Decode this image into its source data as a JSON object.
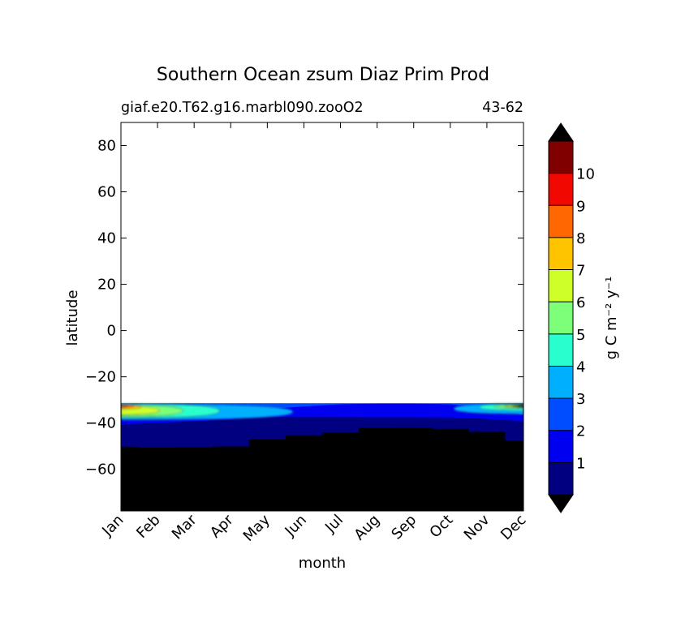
{
  "chart_data": {
    "type": "contour",
    "title": "Southern Ocean zsum Diaz Prim Prod",
    "subtitle_left": "giaf.e20.T62.g16.marbl090.zooO2",
    "subtitle_right": "43-62",
    "xlabel": "month",
    "ylabel": "latitude",
    "x_categories": [
      "Jan",
      "Feb",
      "Mar",
      "Apr",
      "May",
      "Jun",
      "Jul",
      "Aug",
      "Sep",
      "Oct",
      "Nov",
      "Dec"
    ],
    "xlim": [
      0,
      11
    ],
    "ylim": [
      -78,
      90
    ],
    "y_ticks": [
      80,
      60,
      40,
      20,
      0,
      -20,
      -40,
      -60
    ],
    "y_tick_labels": [
      "80",
      "60",
      "40",
      "20",
      "0",
      "−20",
      "−40",
      "−60"
    ],
    "data_northern_boundary_lat": -31.5,
    "land_mask_lat": [
      -50.2,
      -50.6,
      -50.5,
      -50.1,
      -47.0,
      -45.3,
      -44.0,
      -42.1,
      -41.9,
      -42.5,
      -43.8,
      -47.5
    ],
    "colorbar": {
      "label": "g C m⁻² y⁻¹",
      "levels": [
        0,
        1,
        2,
        3,
        4,
        5,
        6,
        7,
        8,
        9,
        10,
        11
      ],
      "colors": [
        "#000080",
        "#0000f0",
        "#004dff",
        "#00b0ff",
        "#29ffce",
        "#7dff7a",
        "#ceff29",
        "#ffc400",
        "#ff6800",
        "#f10800",
        "#800000"
      ],
      "tick_labels": [
        "1",
        "2",
        "3",
        "4",
        "5",
        "6",
        "7",
        "8",
        "9",
        "10"
      ],
      "extend": "both",
      "under_color": "#000000",
      "over_color": "#000000"
    },
    "grid": false,
    "legend": "colorbar-right"
  }
}
